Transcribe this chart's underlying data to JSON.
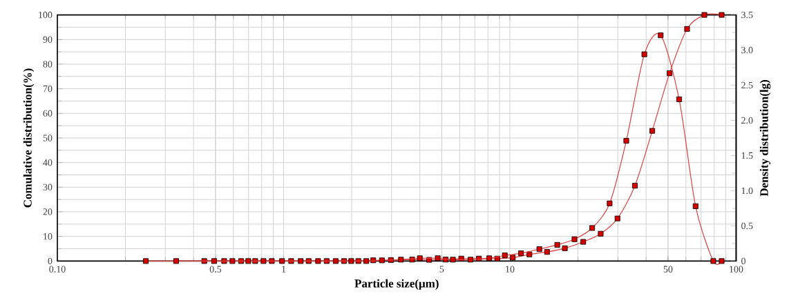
{
  "chart_data": {
    "type": "line",
    "xlabel": "Particle size(μm)",
    "ylabel": "Comulative distribution(%)",
    "y2label": "Density distribution(lg)",
    "log": "x",
    "grid": true,
    "marker": "square",
    "line_style": "solid",
    "xlim": [
      0.1,
      100
    ],
    "xticks": [
      {
        "value": 0.1,
        "label": "0.10"
      },
      0.5,
      1,
      5,
      10,
      50,
      100
    ],
    "ylim": [
      0,
      100
    ],
    "yticks": [
      0,
      10,
      20,
      30,
      40,
      50,
      60,
      70,
      80,
      90,
      100
    ],
    "y2lim": [
      0,
      3.5
    ],
    "y2ticks": [
      0,
      {
        "value": 0.5,
        "label": "0.5"
      },
      {
        "value": 1,
        "label": "1.0"
      },
      {
        "value": 1.5,
        "label": "1.5"
      },
      {
        "value": 2,
        "label": "2.0"
      },
      {
        "value": 2.5,
        "label": "2.5"
      },
      {
        "value": 3,
        "label": "3.0"
      },
      {
        "value": 3.5,
        "label": "3.5"
      }
    ],
    "series": [
      {
        "color": "#d40000",
        "x": [
          0.246,
          0.446,
          0.546,
          0.649,
          0.749,
          0.887,
          1.08,
          1.29,
          1.55,
          1.85,
          2.14,
          2.49,
          2.98,
          3.7,
          4.4,
          5.2,
          6.1,
          7.3,
          8.8,
          10.3,
          12.2,
          14.6,
          17.5,
          21.1,
          25.2,
          29.9,
          35.7,
          42.6,
          50.8,
          60.7,
          72.4,
          86.3
        ],
        "values": [
          0,
          0,
          0,
          0,
          0,
          0,
          0,
          0,
          0,
          0,
          0,
          0.3,
          0.4,
          0.6,
          0.5,
          0.6,
          1.0,
          1.0,
          1.0,
          1.4,
          2.7,
          3.7,
          5.2,
          7.8,
          11.1,
          17.3,
          30.6,
          52.9,
          76.3,
          94.3,
          100,
          100
        ]
      },
      {
        "color": "#d40000",
        "axis": "y2",
        "x": [
          0.335,
          0.493,
          0.594,
          0.698,
          0.815,
          0.984,
          1.19,
          1.42,
          1.7,
          1.99,
          2.32,
          2.72,
          3.3,
          4.0,
          4.8,
          5.6,
          6.7,
          8.1,
          9.5,
          11.2,
          13.5,
          16.2,
          19.3,
          23.1,
          27.6,
          32.7,
          39.3,
          46.4,
          56.0,
          66.2,
          79.3,
          86.3
        ],
        "values": [
          0,
          0,
          0,
          0,
          0,
          0,
          0,
          0,
          0,
          0,
          0,
          0.01,
          0.02,
          0.04,
          0.04,
          0.02,
          0.02,
          0.04,
          0.08,
          0.11,
          0.17,
          0.23,
          0.31,
          0.47,
          0.82,
          1.71,
          2.94,
          3.21,
          2.3,
          0.78,
          0,
          0
        ]
      }
    ]
  }
}
